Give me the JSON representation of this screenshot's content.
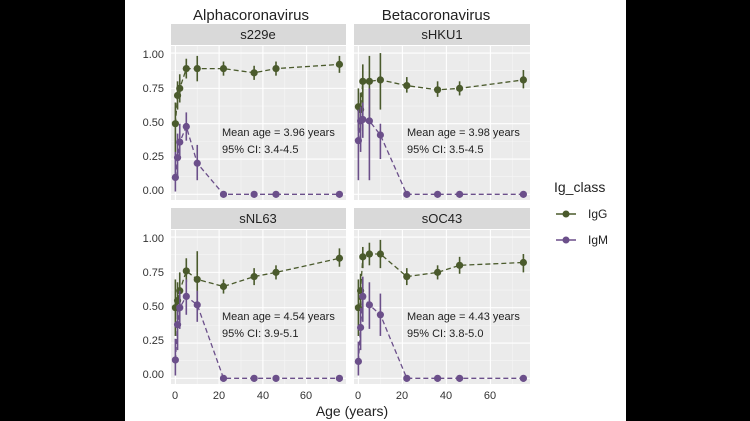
{
  "chart_data": {
    "type": "line",
    "column_titles": [
      "Alphacoronavirus",
      "Betacoronavirus"
    ],
    "xlabel": "Age (years)",
    "xlim": [
      -2,
      78
    ],
    "ylim": [
      -0.04,
      1.05
    ],
    "x_ticks": [
      0,
      20,
      40,
      60
    ],
    "y_ticks": [
      0.0,
      0.25,
      0.5,
      0.75,
      1.0
    ],
    "y_tick_labels": [
      "0.00",
      "0.25",
      "0.50",
      "0.75",
      "1.00"
    ],
    "legend": {
      "title": "Ig_class",
      "placement": "right",
      "entries": [
        {
          "label": "IgG",
          "color": "#4a5a2c"
        },
        {
          "label": "IgM",
          "color": "#6b4f8a"
        }
      ]
    },
    "colors": {
      "panel_bg": "#ebebeb",
      "strip_bg": "#d9d9d9",
      "grid": "#ffffff",
      "IgG": "#4a5a2c",
      "IgM": "#6b4f8a"
    },
    "x": [
      0,
      1,
      2,
      5,
      10,
      22,
      36,
      46,
      75
    ],
    "panels": [
      {
        "title": "s229e",
        "annotation": [
          "Mean age = 3.96 years",
          "95% CI: 3.4-4.5"
        ],
        "series": [
          {
            "name": "IgG",
            "values": [
              0.5,
              0.7,
              0.75,
              0.89,
              0.89,
              0.89,
              0.86,
              0.89,
              0.92
            ],
            "lower": [
              0.3,
              0.6,
              0.65,
              0.82,
              0.8,
              0.84,
              0.81,
              0.84,
              0.86
            ],
            "upper": [
              0.65,
              0.8,
              0.85,
              0.96,
              0.98,
              0.94,
              0.91,
              0.94,
              0.98
            ]
          },
          {
            "name": "IgM",
            "values": [
              0.12,
              0.26,
              0.37,
              0.48,
              0.22,
              0.0,
              0.0,
              0.0,
              0.0
            ],
            "lower": [
              0.02,
              0.12,
              0.25,
              0.38,
              0.1,
              0.0,
              0.0,
              0.0,
              0.0
            ],
            "upper": [
              0.3,
              0.43,
              0.5,
              0.58,
              0.35,
              0.0,
              0.0,
              0.0,
              0.0
            ]
          }
        ]
      },
      {
        "title": "sHKU1",
        "annotation": [
          "Mean age = 3.98 years",
          "95% CI: 3.5-4.5"
        ],
        "series": [
          {
            "name": "IgG",
            "values": [
              0.62,
              0.6,
              0.8,
              0.8,
              0.81,
              0.77,
              0.74,
              0.75,
              0.81
            ],
            "lower": [
              0.45,
              0.45,
              0.6,
              0.55,
              0.6,
              0.72,
              0.69,
              0.7,
              0.75
            ],
            "upper": [
              0.75,
              0.72,
              0.92,
              0.98,
              1.0,
              0.83,
              0.8,
              0.8,
              0.88
            ]
          },
          {
            "name": "IgM",
            "values": [
              0.38,
              0.52,
              0.53,
              0.52,
              0.42,
              0.0,
              0.0,
              0.0,
              0.0
            ],
            "lower": [
              0.1,
              0.3,
              0.4,
              0.1,
              0.25,
              0.0,
              0.0,
              0.0,
              0.0
            ],
            "upper": [
              0.6,
              0.62,
              0.65,
              0.75,
              0.5,
              0.0,
              0.0,
              0.0,
              0.0
            ]
          }
        ]
      },
      {
        "title": "sNL63",
        "annotation": [
          "Mean age = 4.54 years",
          "95% CI: 3.9-5.1"
        ],
        "series": [
          {
            "name": "IgG",
            "values": [
              0.5,
              0.55,
              0.62,
              0.76,
              0.7,
              0.65,
              0.72,
              0.75,
              0.85
            ],
            "lower": [
              0.3,
              0.42,
              0.5,
              0.68,
              0.5,
              0.6,
              0.66,
              0.7,
              0.79
            ],
            "upper": [
              0.7,
              0.68,
              0.75,
              0.85,
              0.9,
              0.7,
              0.78,
              0.8,
              0.92
            ]
          },
          {
            "name": "IgM",
            "values": [
              0.13,
              0.38,
              0.5,
              0.58,
              0.52,
              0.0,
              0.0,
              0.0,
              0.0
            ],
            "lower": [
              0.02,
              0.2,
              0.35,
              0.45,
              0.4,
              0.0,
              0.0,
              0.0,
              0.0
            ],
            "upper": [
              0.28,
              0.52,
              0.62,
              0.7,
              0.62,
              0.0,
              0.0,
              0.0,
              0.0
            ]
          }
        ]
      },
      {
        "title": "sOC43",
        "annotation": [
          "Mean age = 4.43 years",
          "95% CI: 3.8-5.0"
        ],
        "series": [
          {
            "name": "IgG",
            "values": [
              0.5,
              0.62,
              0.86,
              0.88,
              0.88,
              0.72,
              0.75,
              0.8,
              0.82
            ],
            "lower": [
              0.3,
              0.5,
              0.78,
              0.8,
              0.78,
              0.66,
              0.7,
              0.74,
              0.75
            ],
            "upper": [
              0.7,
              0.74,
              0.93,
              0.96,
              0.98,
              0.78,
              0.8,
              0.86,
              0.88
            ]
          },
          {
            "name": "IgM",
            "values": [
              0.12,
              0.36,
              0.58,
              0.52,
              0.45,
              0.0,
              0.0,
              0.0,
              0.0
            ],
            "lower": [
              0.02,
              0.2,
              0.4,
              0.35,
              0.3,
              0.0,
              0.0,
              0.0,
              0.0
            ],
            "upper": [
              0.26,
              0.5,
              0.72,
              0.68,
              0.6,
              0.0,
              0.0,
              0.0,
              0.0
            ]
          }
        ]
      }
    ]
  }
}
